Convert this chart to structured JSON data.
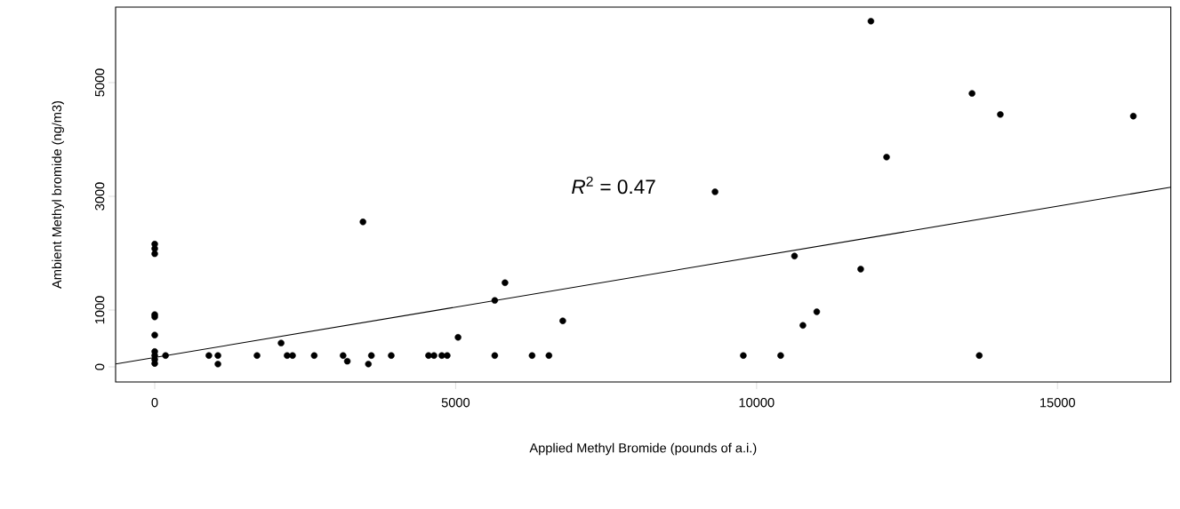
{
  "chart_data": {
    "type": "scatter",
    "xlabel": "Applied Methyl Bromide (pounds of a.i.)",
    "ylabel": "Ambient Methyl bromide (ng/m3)",
    "xlim": [
      -650,
      16883
    ],
    "ylim": [
      -265,
      6328
    ],
    "xticks": [
      0,
      5000,
      10000,
      15000
    ],
    "yticks": [
      0,
      1000,
      3000,
      5000
    ],
    "marker": "circle",
    "grid": false,
    "annotations": [
      "*R*$^{2}$ = 0.47"
    ],
    "series": [
      {
        "color": "#000000",
        "x": [
          0,
          0,
          0,
          0,
          0,
          0,
          0,
          0,
          0,
          0,
          180,
          900,
          1050,
          1050,
          1700,
          2100,
          2200,
          2290,
          2650,
          3130,
          3200,
          3460,
          3550,
          3600,
          3930,
          4550,
          4640,
          4770,
          4860,
          5040,
          5650,
          5650,
          5820,
          6270,
          6550,
          6780,
          9310,
          9780,
          10400,
          10630,
          10770,
          11000,
          11730,
          11900,
          12160,
          13580,
          13700,
          14050,
          16260
        ],
        "values": [
          2160,
          2080,
          1990,
          920,
          880,
          560,
          270,
          200,
          130,
          60,
          200,
          200,
          50,
          200,
          200,
          420,
          200,
          200,
          200,
          200,
          100,
          2550,
          50,
          200,
          200,
          200,
          200,
          200,
          200,
          520,
          1170,
          200,
          1480,
          200,
          200,
          810,
          3080,
          200,
          200,
          1950,
          730,
          970,
          1720,
          6080,
          3690,
          4810,
          200,
          4440,
          4410
        ]
      },
      {
        "type": "line",
        "marker": "none",
        "color": "#000000",
        "x": [
          -650,
          16883
        ],
        "values": [
          50,
          3160
        ]
      }
    ]
  }
}
